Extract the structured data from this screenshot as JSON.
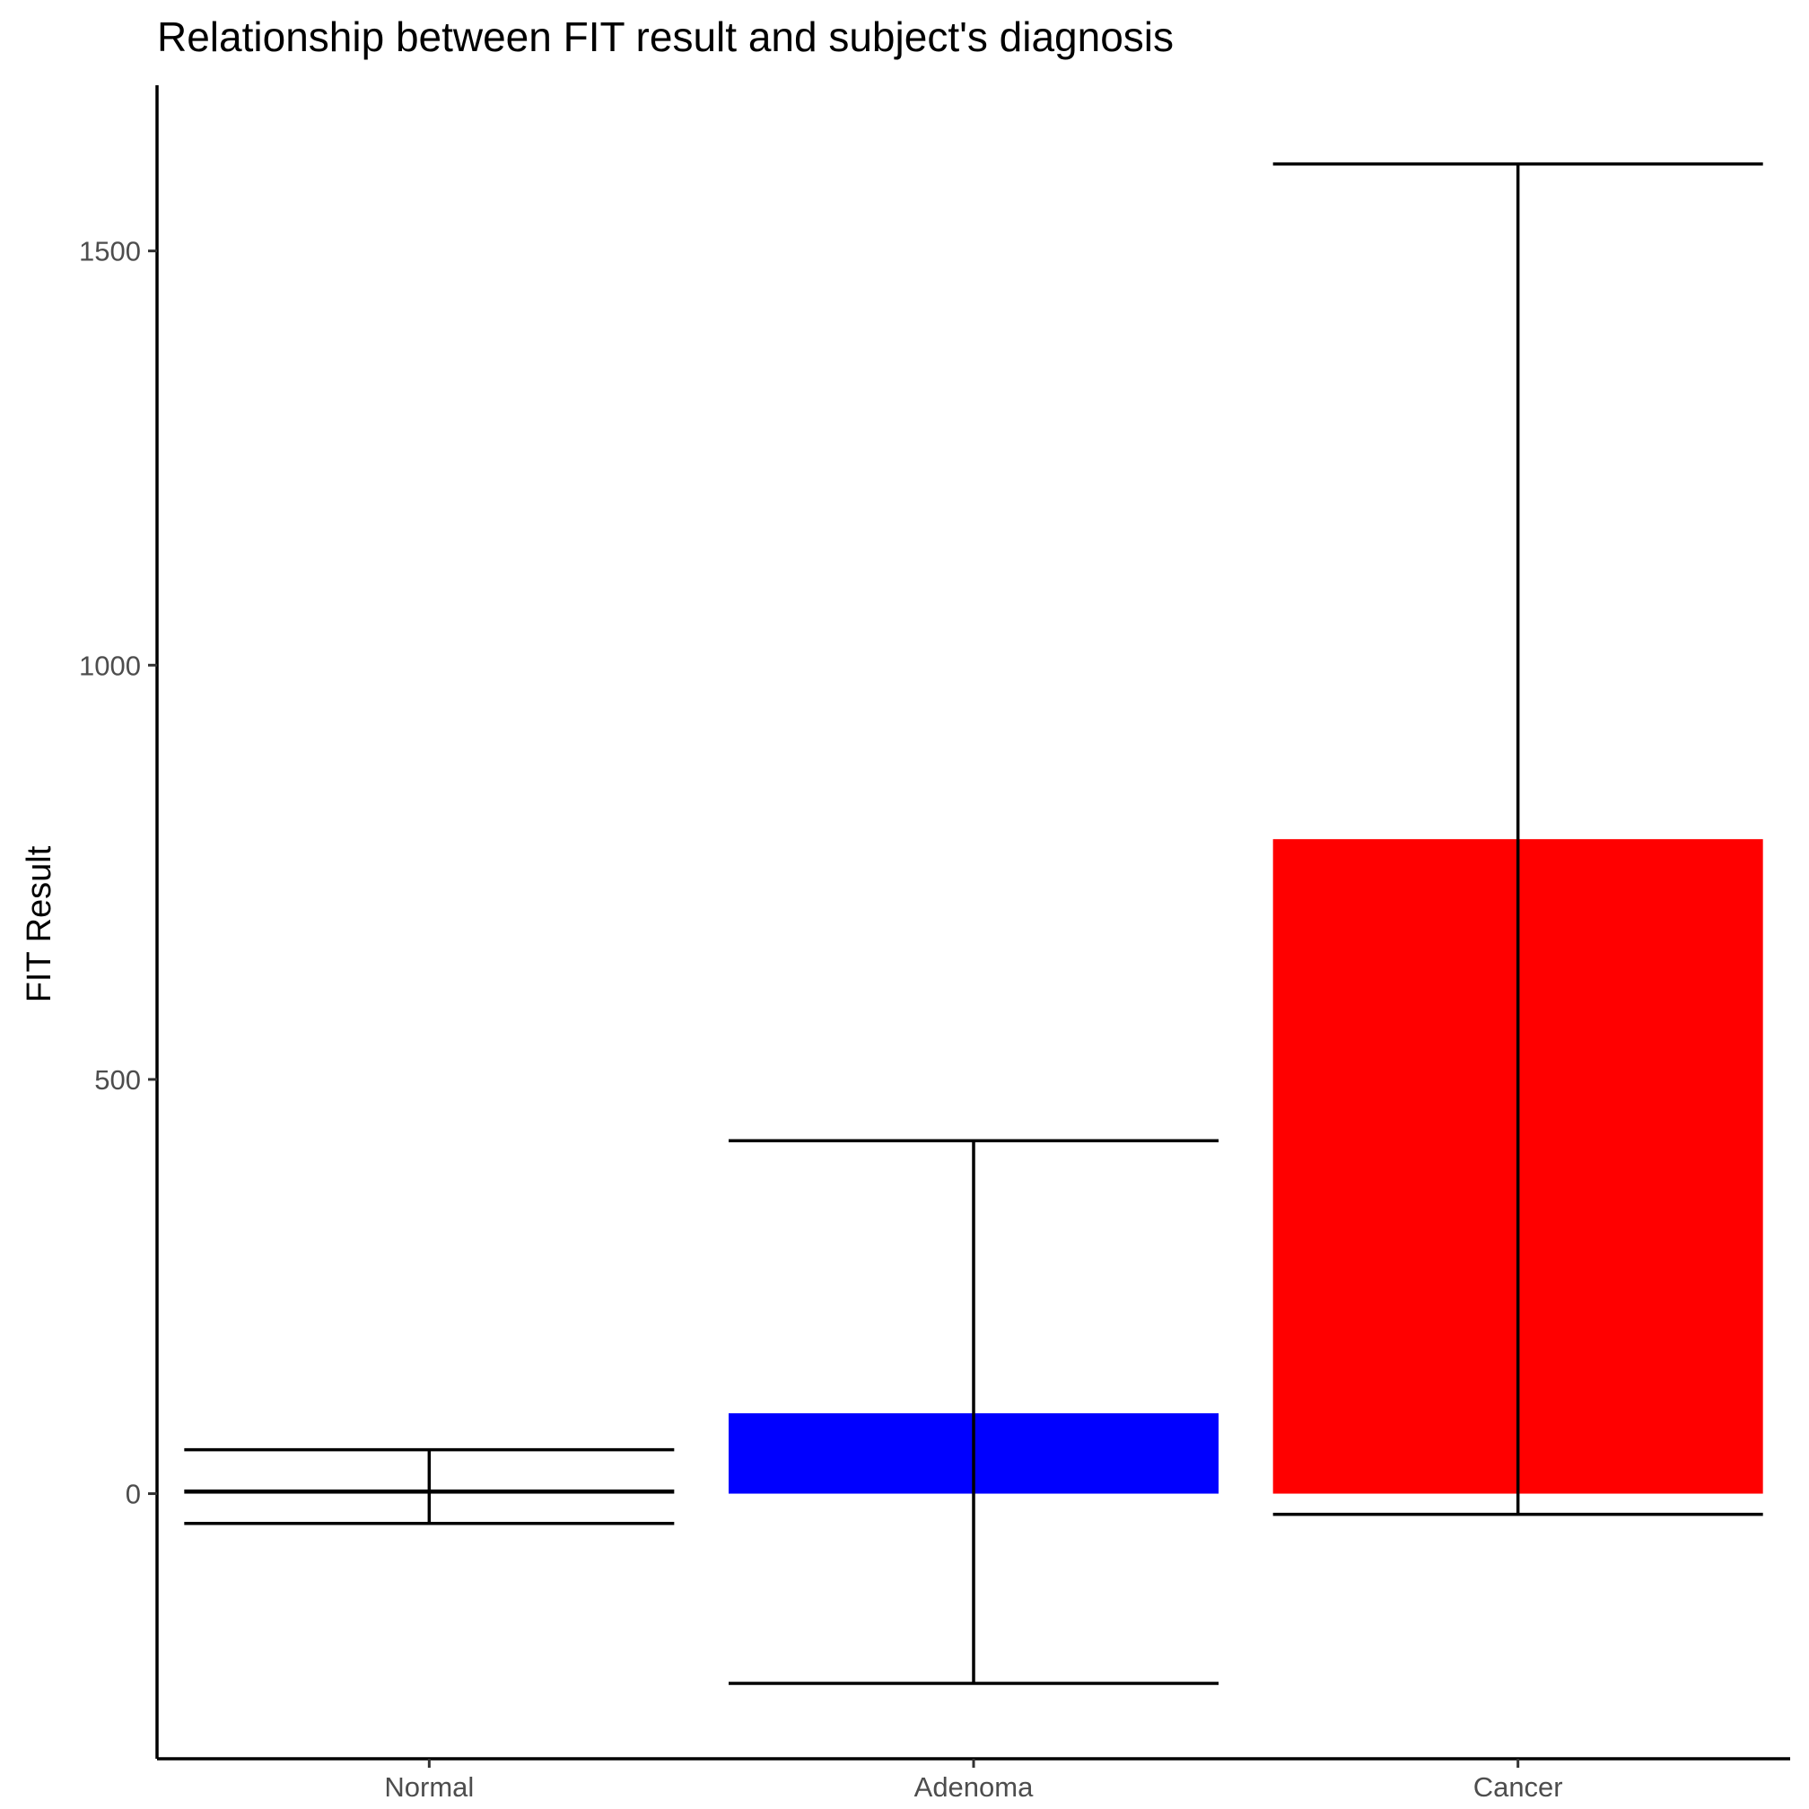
{
  "chart_data": {
    "type": "bar",
    "title": "Relationship between FIT result and subject's diagnosis",
    "xlabel": "",
    "ylabel": "FIT Result",
    "categories": [
      "Normal",
      "Adenoma",
      "Cancer"
    ],
    "values": [
      5,
      97,
      790
    ],
    "error_bars": [
      {
        "low": -36,
        "high": 53
      },
      {
        "low": -229,
        "high": 426
      },
      {
        "low": -25,
        "high": 1605
      }
    ],
    "colors": [
      "#000000",
      "#0000ff",
      "#ff0000"
    ],
    "ylim": [
      -320,
      1700
    ],
    "yticks": [
      0,
      500,
      1000,
      1500
    ],
    "yticklabels": [
      "0",
      "500",
      "1000",
      "1500"
    ],
    "grid": false,
    "legend": "none"
  }
}
